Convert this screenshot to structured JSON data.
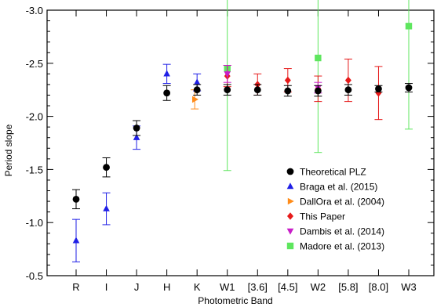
{
  "chart_data": {
    "type": "scatter",
    "xlabel": "Photometric Band",
    "ylabel": "Period slope",
    "categories": [
      "R",
      "I",
      "J",
      "H",
      "K",
      "W1",
      "[3.6]",
      "[4.5]",
      "W2",
      "[5.8]",
      "[8.0]",
      "W3"
    ],
    "ylim": [
      -0.5,
      -3.0
    ],
    "y_inverted": true,
    "yticks": [
      -0.5,
      -1.0,
      -1.5,
      -2.0,
      -2.5,
      -3.0
    ],
    "ytick_labels": [
      "-0.5",
      "-1.0",
      "-1.5",
      "-2.0",
      "-2.5",
      "-3.0"
    ],
    "legend_position": "lower-right",
    "series": [
      {
        "name": "Theoretical PLZ",
        "color": "#000000",
        "marker": "circle",
        "points": [
          {
            "x": "R",
            "y": -1.22,
            "err": 0.09
          },
          {
            "x": "I",
            "y": -1.52,
            "err": 0.09
          },
          {
            "x": "J",
            "y": -1.89,
            "err": 0.07
          },
          {
            "x": "H",
            "y": -2.22,
            "err": 0.07
          },
          {
            "x": "K",
            "y": -2.25,
            "err": 0.05
          },
          {
            "x": "W1",
            "y": -2.25,
            "err": 0.05
          },
          {
            "x": "[3.6]",
            "y": -2.25,
            "err": 0.05
          },
          {
            "x": "[4.5]",
            "y": -2.24,
            "err": 0.05
          },
          {
            "x": "W2",
            "y": -2.24,
            "err": 0.05
          },
          {
            "x": "[5.8]",
            "y": -2.25,
            "err": 0.05
          },
          {
            "x": "[8.0]",
            "y": -2.26,
            "err": 0.03
          },
          {
            "x": "W3",
            "y": -2.27,
            "err": 0.04
          }
        ]
      },
      {
        "name": "Braga et al. (2015)",
        "color": "#1f1fe6",
        "marker": "triangle-up",
        "points": [
          {
            "x": "R",
            "y": -0.83,
            "err": 0.2
          },
          {
            "x": "I",
            "y": -1.13,
            "err": 0.15
          },
          {
            "x": "J",
            "y": -1.8,
            "err": 0.11
          },
          {
            "x": "H",
            "y": -2.4,
            "err": 0.09
          },
          {
            "x": "K",
            "y": -2.32,
            "err": 0.08
          }
        ]
      },
      {
        "name": "DallOra et al. (2004)",
        "color": "#ff8c1a",
        "marker": "triangle-right",
        "points": [
          {
            "x": "K",
            "y": -2.16,
            "err": 0.09
          }
        ]
      },
      {
        "name": "This Paper",
        "color": "#e61a1a",
        "marker": "diamond",
        "points": [
          {
            "x": "W1",
            "y": -2.38,
            "err": 0.1
          },
          {
            "x": "[3.6]",
            "y": -2.3,
            "err": 0.1
          },
          {
            "x": "[4.5]",
            "y": -2.34,
            "err": 0.11
          },
          {
            "x": "W2",
            "y": -2.26,
            "err": 0.12
          },
          {
            "x": "[5.8]",
            "y": -2.34,
            "err": 0.2
          },
          {
            "x": "[8.0]",
            "y": -2.22,
            "err": 0.25
          }
        ]
      },
      {
        "name": "Dambis et al. (2014)",
        "color": "#c81ec8",
        "marker": "triangle-down",
        "points": [
          {
            "x": "W1",
            "y": -2.4,
            "err": 0.08
          },
          {
            "x": "W2",
            "y": -2.27,
            "err": 0.05
          }
        ]
      },
      {
        "name": "Madore et al. (2013)",
        "color": "#5ee65e",
        "marker": "square",
        "points": [
          {
            "x": "W1",
            "y": -2.45,
            "err": 0.96
          },
          {
            "x": "W2",
            "y": -2.55,
            "err": 0.89
          },
          {
            "x": "W3",
            "y": -2.85,
            "err": 0.97
          }
        ]
      }
    ]
  }
}
